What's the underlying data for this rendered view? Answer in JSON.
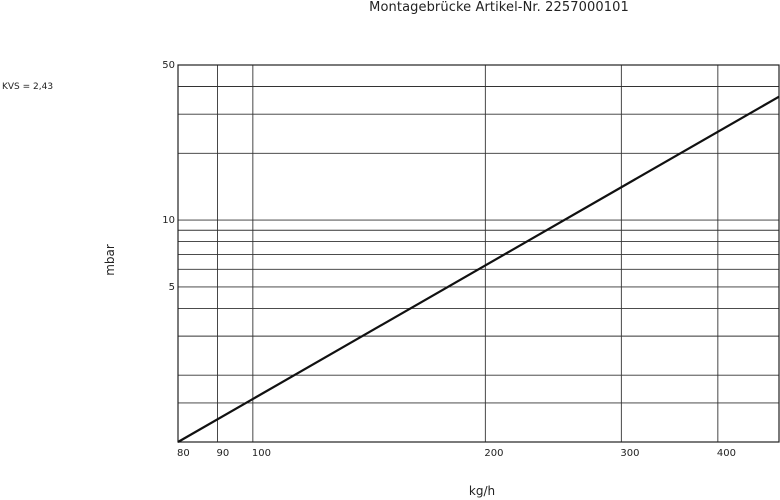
{
  "chart_data": {
    "type": "line",
    "title": "Montagebrücke Artikel-Nr. 2257000101",
    "annotation": "KVS = 2,43",
    "xlabel": "kg/h",
    "ylabel": "mbar",
    "x_scale": "log",
    "y_scale": "log",
    "xlim": [
      80,
      480
    ],
    "ylim": [
      1,
      50
    ],
    "x_ticks": [
      80,
      90,
      100,
      200,
      300,
      400
    ],
    "y_ticks": [
      5,
      10,
      50
    ],
    "x_grid": [
      80,
      90,
      100,
      200,
      300,
      400,
      480
    ],
    "y_grid": [
      1.5,
      2,
      3,
      4,
      5,
      6,
      7,
      8,
      9,
      10,
      20,
      30,
      40,
      50
    ],
    "grid": true,
    "series": [
      {
        "x": [
          80,
          480
        ],
        "y": [
          1.0,
          36.0
        ]
      }
    ]
  }
}
